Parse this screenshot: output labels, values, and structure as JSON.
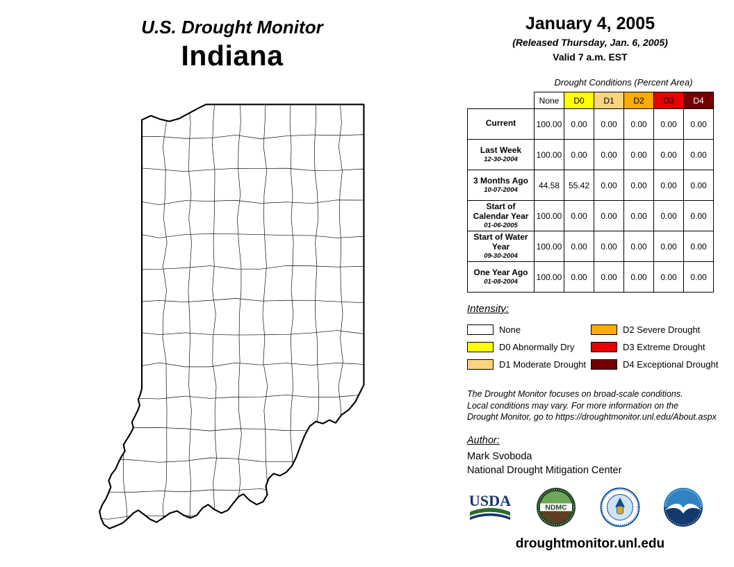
{
  "header": {
    "title": "U.S. Drought Monitor",
    "state": "Indiana",
    "date": "January 4, 2005",
    "released": "(Released Thursday, Jan. 6, 2005)",
    "valid": "Valid 7 a.m. EST"
  },
  "table": {
    "title": "Drought Conditions (Percent Area)",
    "columns": [
      "None",
      "D0",
      "D1",
      "D2",
      "D3",
      "D4"
    ],
    "column_colors": [
      "#FFFFFF",
      "#FFFF00",
      "#FCD37F",
      "#FFAA00",
      "#E60000",
      "#730000"
    ],
    "column_text_colors": [
      "#000000",
      "#000000",
      "#000000",
      "#000000",
      "#000000",
      "#FFFFFF"
    ],
    "rows": [
      {
        "label": "Current",
        "sublabel": "",
        "values": [
          "100.00",
          "0.00",
          "0.00",
          "0.00",
          "0.00",
          "0.00"
        ]
      },
      {
        "label": "Last Week",
        "sublabel": "12-30-2004",
        "values": [
          "100.00",
          "0.00",
          "0.00",
          "0.00",
          "0.00",
          "0.00"
        ]
      },
      {
        "label": "3 Months Ago",
        "sublabel": "10-07-2004",
        "values": [
          "44.58",
          "55.42",
          "0.00",
          "0.00",
          "0.00",
          "0.00"
        ]
      },
      {
        "label": "Start of Calendar Year",
        "sublabel": "01-06-2005",
        "values": [
          "100.00",
          "0.00",
          "0.00",
          "0.00",
          "0.00",
          "0.00"
        ]
      },
      {
        "label": "Start of Water Year",
        "sublabel": "09-30-2004",
        "values": [
          "100.00",
          "0.00",
          "0.00",
          "0.00",
          "0.00",
          "0.00"
        ]
      },
      {
        "label": "One Year Ago",
        "sublabel": "01-08-2004",
        "values": [
          "100.00",
          "0.00",
          "0.00",
          "0.00",
          "0.00",
          "0.00"
        ]
      }
    ]
  },
  "legend": {
    "title": "Intensity:",
    "items": [
      {
        "label": "None",
        "color": "#FFFFFF"
      },
      {
        "label": "D0 Abnormally Dry",
        "color": "#FFFF00"
      },
      {
        "label": "D1 Moderate Drought",
        "color": "#FCD37F"
      },
      {
        "label": "D2 Severe Drought",
        "color": "#FFAA00"
      },
      {
        "label": "D3 Extreme Drought",
        "color": "#E60000"
      },
      {
        "label": "D4 Exceptional Drought",
        "color": "#730000"
      }
    ]
  },
  "disclaimer": {
    "lines": [
      "The Drought Monitor focuses on broad-scale conditions.",
      "Local conditions may vary. For more information on the",
      "Drought Monitor, go to https://droughtmonitor.unl.edu/About.aspx"
    ]
  },
  "author": {
    "heading": "Author:",
    "name": "Mark Svoboda",
    "org": "National Drought Mitigation Center"
  },
  "logos": {
    "usda_text": "USDA",
    "ndmc_text": "NDMC"
  },
  "footer": {
    "url": "droughtmonitor.unl.edu"
  }
}
